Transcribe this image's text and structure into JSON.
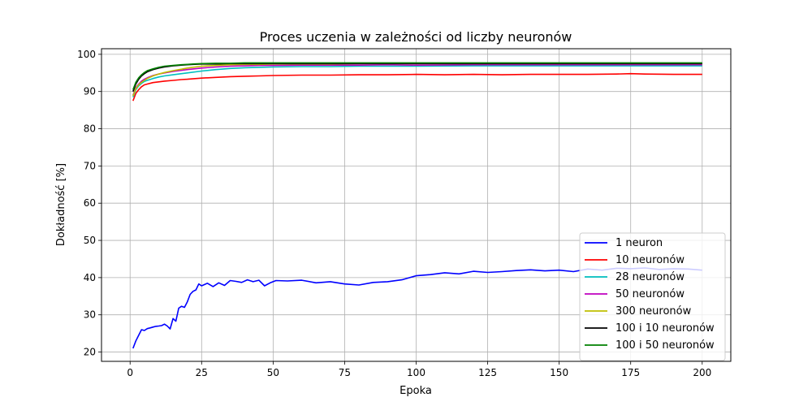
{
  "chart_data": {
    "type": "line",
    "title": "Proces uczenia w zależności od liczby neuronów",
    "xlabel": "Epoka",
    "ylabel": "Dokładność [%]",
    "xlim": [
      -10,
      210
    ],
    "ylim": [
      17.5,
      101.5
    ],
    "xticks": [
      0,
      25,
      50,
      75,
      100,
      125,
      150,
      175,
      200
    ],
    "yticks": [
      20,
      30,
      40,
      50,
      60,
      70,
      80,
      90,
      100
    ],
    "grid": true,
    "legend_position": "bottom-right",
    "series": [
      {
        "name": "1 neuron",
        "color": "#0000ff",
        "x": [
          1,
          2,
          3,
          4,
          5,
          6,
          7,
          8,
          9,
          10,
          11,
          12,
          13,
          14,
          15,
          16,
          17,
          18,
          19,
          20,
          21,
          22,
          23,
          24,
          25,
          27,
          29,
          31,
          33,
          35,
          37,
          39,
          41,
          43,
          45,
          47,
          49,
          51,
          55,
          60,
          65,
          70,
          75,
          80,
          85,
          90,
          95,
          100,
          105,
          110,
          115,
          120,
          125,
          130,
          135,
          140,
          145,
          150,
          155,
          160,
          165,
          170,
          175,
          180,
          185,
          190,
          195,
          200
        ],
        "y": [
          21.0,
          23.0,
          24.5,
          26.0,
          25.8,
          26.3,
          26.5,
          26.7,
          26.9,
          27.0,
          27.1,
          27.5,
          27.0,
          26.2,
          29.0,
          28.3,
          31.8,
          32.3,
          32.0,
          33.5,
          35.5,
          36.3,
          36.7,
          38.3,
          37.8,
          38.5,
          37.6,
          38.6,
          37.9,
          39.2,
          39.0,
          38.7,
          39.4,
          38.9,
          39.3,
          37.8,
          38.6,
          39.2,
          39.1,
          39.3,
          38.6,
          38.9,
          38.3,
          38.0,
          38.7,
          38.9,
          39.4,
          40.5,
          40.8,
          41.3,
          41.0,
          41.7,
          41.4,
          41.6,
          41.9,
          42.1,
          41.8,
          42.0,
          41.6,
          42.3,
          42.0,
          42.5,
          42.4,
          42.6,
          42.2,
          42.4,
          42.3,
          42.0
        ]
      },
      {
        "name": "10 neuronów",
        "color": "#ff0000",
        "x": [
          1,
          2,
          3,
          4,
          5,
          6,
          8,
          10,
          12,
          15,
          18,
          20,
          25,
          30,
          35,
          40,
          45,
          50,
          60,
          70,
          80,
          90,
          100,
          110,
          120,
          130,
          140,
          150,
          160,
          170,
          175,
          180,
          190,
          200
        ],
        "y": [
          87.5,
          89.5,
          90.5,
          91.3,
          91.8,
          92.0,
          92.4,
          92.6,
          92.8,
          93.0,
          93.2,
          93.3,
          93.6,
          93.8,
          94.0,
          94.1,
          94.2,
          94.3,
          94.4,
          94.4,
          94.5,
          94.5,
          94.6,
          94.5,
          94.6,
          94.5,
          94.6,
          94.6,
          94.6,
          94.7,
          94.8,
          94.7,
          94.6,
          94.6
        ]
      },
      {
        "name": "28 neuronów",
        "color": "#00bfbf",
        "x": [
          1,
          2,
          3,
          4,
          5,
          6,
          8,
          10,
          12,
          15,
          18,
          20,
          25,
          30,
          35,
          40,
          45,
          50,
          60,
          70,
          80,
          90,
          100,
          120,
          140,
          160,
          180,
          200
        ],
        "y": [
          88.5,
          90.5,
          91.5,
          92.2,
          92.7,
          93.0,
          93.5,
          93.9,
          94.2,
          94.5,
          94.8,
          95.0,
          95.5,
          95.9,
          96.2,
          96.4,
          96.5,
          96.6,
          96.7,
          96.7,
          96.8,
          96.8,
          96.8,
          96.9,
          96.9,
          96.9,
          96.9,
          96.9
        ]
      },
      {
        "name": "50 neuronów",
        "color": "#bf00bf",
        "x": [
          1,
          2,
          3,
          4,
          5,
          6,
          8,
          10,
          12,
          15,
          18,
          20,
          25,
          30,
          35,
          40,
          45,
          50,
          60,
          70,
          80,
          90,
          100,
          120,
          140,
          160,
          180,
          200
        ],
        "y": [
          89.0,
          91.0,
          92.0,
          92.8,
          93.3,
          93.7,
          94.3,
          94.7,
          95.0,
          95.4,
          95.7,
          95.9,
          96.3,
          96.6,
          96.8,
          96.9,
          97.0,
          97.0,
          97.1,
          97.1,
          97.1,
          97.2,
          97.1,
          97.2,
          97.2,
          97.2,
          97.2,
          97.2
        ]
      },
      {
        "name": "300 neuronów",
        "color": "#bfbf00",
        "x": [
          1,
          2,
          3,
          4,
          5,
          6,
          8,
          10,
          12,
          15,
          18,
          20,
          25,
          30,
          35,
          40,
          45,
          50,
          60,
          70,
          80,
          90,
          100,
          120,
          140,
          160,
          180,
          200
        ],
        "y": [
          88.8,
          90.8,
          91.8,
          92.5,
          93.0,
          93.5,
          94.2,
          94.7,
          95.1,
          95.6,
          96.0,
          96.3,
          96.8,
          97.0,
          97.2,
          97.3,
          97.3,
          97.4,
          97.4,
          97.4,
          97.5,
          97.5,
          97.5,
          97.5,
          97.5,
          97.5,
          97.5,
          97.5
        ]
      },
      {
        "name": "100 i 10 neuronów",
        "color": "#000000",
        "x": [
          1,
          2,
          3,
          4,
          5,
          6,
          8,
          10,
          12,
          15,
          18,
          20,
          22,
          25,
          30,
          35,
          40,
          45,
          50,
          60,
          70,
          80,
          90,
          100,
          120,
          140,
          160,
          180,
          200
        ],
        "y": [
          90.0,
          92.0,
          93.3,
          94.2,
          94.8,
          95.3,
          95.9,
          96.3,
          96.6,
          96.9,
          97.1,
          97.2,
          97.3,
          97.4,
          97.4,
          97.5,
          97.5,
          97.5,
          97.5,
          97.5,
          97.5,
          97.5,
          97.5,
          97.5,
          97.5,
          97.5,
          97.5,
          97.5,
          97.5
        ]
      },
      {
        "name": "100 i 50 neuronów",
        "color": "#008000",
        "x": [
          1,
          2,
          3,
          4,
          5,
          6,
          8,
          10,
          12,
          15,
          18,
          20,
          22,
          25,
          30,
          35,
          40,
          45,
          50,
          60,
          70,
          80,
          90,
          100,
          120,
          140,
          160,
          180,
          200
        ],
        "y": [
          90.5,
          92.5,
          93.7,
          94.5,
          95.1,
          95.6,
          96.1,
          96.5,
          96.8,
          97.0,
          97.2,
          97.3,
          97.4,
          97.5,
          97.6,
          97.6,
          97.7,
          97.7,
          97.7,
          97.7,
          97.7,
          97.7,
          97.7,
          97.7,
          97.7,
          97.7,
          97.7,
          97.7,
          97.7
        ]
      }
    ]
  }
}
